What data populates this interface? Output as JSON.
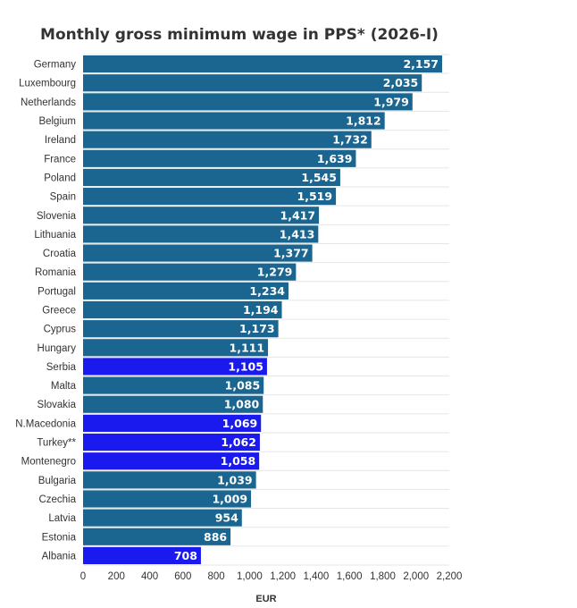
{
  "chart_data": {
    "type": "bar",
    "orientation": "horizontal",
    "title": "Monthly gross minimum wage in PPS* (2026-I)",
    "xlabel": "EUR",
    "xlim": [
      0,
      2200
    ],
    "xticks": [
      "0",
      "200",
      "400",
      "600",
      "800",
      "1,000",
      "1,200",
      "1,400",
      "1,600",
      "1,800",
      "2,000",
      "2,200"
    ],
    "grid": true,
    "colors": {
      "default": "#1b6690",
      "highlight": "#1a1aee"
    },
    "categories": [
      "Germany",
      "Luxembourg",
      "Netherlands",
      "Belgium",
      "Ireland",
      "France",
      "Poland",
      "Spain",
      "Slovenia",
      "Lithuania",
      "Croatia",
      "Romania",
      "Portugal",
      "Greece",
      "Cyprus",
      "Hungary",
      "Serbia",
      "Malta",
      "Slovakia",
      "N.Macedonia",
      "Turkey**",
      "Montenegro",
      "Bulgaria",
      "Czechia",
      "Latvia",
      "Estonia",
      "Albania"
    ],
    "values": [
      2157,
      2035,
      1979,
      1812,
      1732,
      1639,
      1545,
      1519,
      1417,
      1413,
      1377,
      1279,
      1234,
      1194,
      1173,
      1111,
      1105,
      1085,
      1080,
      1069,
      1062,
      1058,
      1039,
      1009,
      954,
      886,
      708
    ],
    "value_labels": [
      "2,157",
      "2,035",
      "1,979",
      "1,812",
      "1,732",
      "1,639",
      "1,545",
      "1,519",
      "1,417",
      "1,413",
      "1,377",
      "1,279",
      "1,234",
      "1,194",
      "1,173",
      "1,111",
      "1,105",
      "1,085",
      "1,080",
      "1,069",
      "1,062",
      "1,058",
      "1,039",
      "1,009",
      "954",
      "886",
      "708"
    ],
    "highlighted": [
      "Serbia",
      "N.Macedonia",
      "Turkey**",
      "Montenegro",
      "Albania"
    ]
  }
}
